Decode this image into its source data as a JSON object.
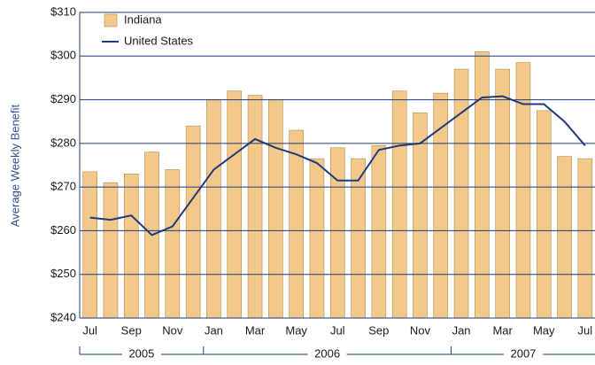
{
  "chart_data": {
    "type": "bar",
    "y_axis_label": "Average Weekly Benefit",
    "categories": [
      "Jul",
      null,
      "Sep",
      null,
      "Nov",
      null,
      "Jan",
      null,
      "Mar",
      null,
      "May",
      null,
      "Jul",
      null,
      "Sep",
      null,
      "Nov",
      null,
      "Jan",
      null,
      "Mar",
      null,
      "May",
      null,
      "Jul"
    ],
    "years": [
      "2005",
      "2006",
      "2007"
    ],
    "series": [
      {
        "name": "Indiana",
        "type": "bar",
        "color": "#f3c98b",
        "values": [
          273.5,
          271,
          273,
          278,
          274,
          284,
          290,
          292,
          291,
          290,
          283,
          276.5,
          279,
          276.5,
          279.5,
          292,
          287,
          291.5,
          297,
          301,
          297,
          298.5,
          287.5,
          277,
          276.5
        ]
      },
      {
        "name": "United States",
        "type": "line",
        "color": "#1f3b7a",
        "values": [
          263,
          262.5,
          263.5,
          259,
          261,
          267.5,
          274,
          277.5,
          281,
          279,
          277.5,
          275.5,
          271.5,
          271.5,
          278.5,
          279.5,
          280,
          283.5,
          287,
          290.5,
          290.8,
          289,
          289,
          285,
          279.5
        ]
      }
    ],
    "ylim": [
      240,
      310
    ],
    "yticks": [
      {
        "value": 240,
        "label": "$240"
      },
      {
        "value": 250,
        "label": "$250"
      },
      {
        "value": 260,
        "label": "$260"
      },
      {
        "value": 270,
        "label": "$270"
      },
      {
        "value": 280,
        "label": "$280"
      },
      {
        "value": 290,
        "label": "$290"
      },
      {
        "value": 300,
        "label": "$300"
      },
      {
        "value": 310,
        "label": "$310"
      }
    ],
    "grid": true,
    "legend": "top-left"
  }
}
